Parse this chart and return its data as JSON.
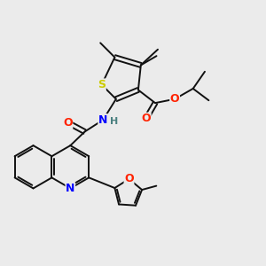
{
  "background_color": "#ebebeb",
  "atom_colors": {
    "S": "#cccc00",
    "N": "#0000ff",
    "O": "#ff2200",
    "C": "#111111",
    "H": "#4a8080"
  },
  "figsize": [
    3.0,
    3.0
  ],
  "dpi": 100,
  "lw": 1.4
}
